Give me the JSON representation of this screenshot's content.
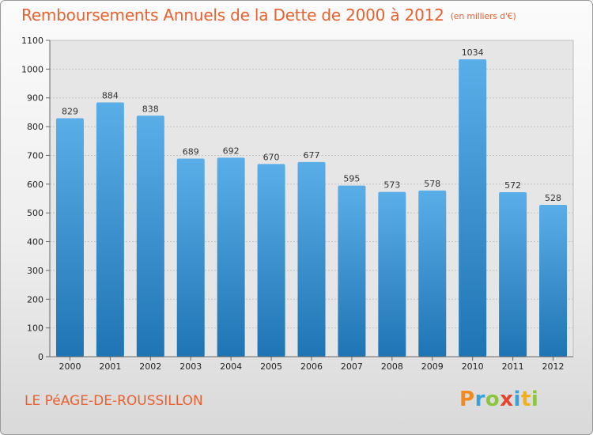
{
  "header": {
    "title": "Remboursements Annuels de la Dette de 2000 à 2012",
    "unit": "(en milliers d'€)"
  },
  "footer": {
    "commune": "LE PéAGE-DE-ROUSSILLON",
    "logo_letters": [
      "P",
      "r",
      "o",
      "x",
      "i",
      "t",
      "i"
    ],
    "logo_colors": [
      "#f28a1e",
      "#3aa0d8",
      "#8cc63f",
      "#e8432d",
      "#3aa0d8",
      "#f2b01e",
      "#8cc63f"
    ]
  },
  "colors": {
    "bar_light": "#5aaee8",
    "bar_dark": "#1f74b3",
    "title": "#e8612f"
  },
  "chart_data": {
    "type": "bar",
    "categories": [
      "2000",
      "2001",
      "2002",
      "2003",
      "2004",
      "2005",
      "2006",
      "2007",
      "2008",
      "2009",
      "2010",
      "2011",
      "2012"
    ],
    "values": [
      829,
      884,
      838,
      689,
      692,
      670,
      677,
      595,
      573,
      578,
      1034,
      572,
      528
    ],
    "ylim": [
      0,
      1100
    ],
    "yticks": [
      0,
      100,
      200,
      300,
      400,
      500,
      600,
      700,
      800,
      900,
      1000,
      1100
    ],
    "grid": true,
    "data_labels": true
  }
}
